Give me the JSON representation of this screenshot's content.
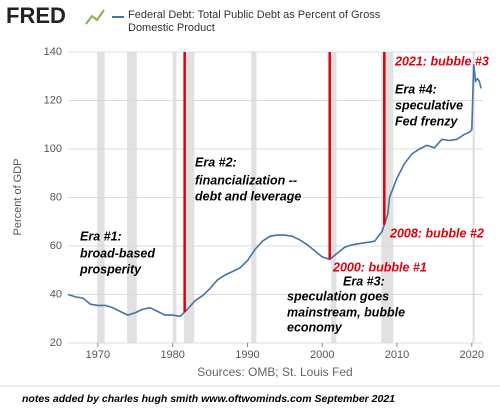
{
  "chart_data": {
    "type": "line",
    "brand": "FRED",
    "title": "Federal Debt: Total Public Debt as Percent of Gross Domestic Product",
    "ylabel": "Percent of GDP",
    "source": "Sources: OMB; St. Louis Fed",
    "footer": "notes added by charles hugh smith   www.oftwominds.com  September 2021",
    "series": [
      {
        "name": "Federal Debt: Total Public Debt as Percent of Gross Domestic Product",
        "color": "#4572a7",
        "x": [
          1966,
          1967,
          1968,
          1969,
          1970,
          1971,
          1972,
          1973,
          1974,
          1975,
          1976,
          1977,
          1978,
          1979,
          1980,
          1981,
          1982,
          1983,
          1984,
          1985,
          1986,
          1987,
          1988,
          1989,
          1990,
          1991,
          1992,
          1993,
          1994,
          1995,
          1996,
          1997,
          1998,
          1999,
          2000,
          2001,
          2002,
          2003,
          2004,
          2005,
          2006,
          2007,
          2008,
          2008.75,
          2009,
          2010,
          2011,
          2012,
          2013,
          2014,
          2015,
          2016,
          2017,
          2018,
          2019,
          2019.75,
          2020,
          2020.25,
          2020.5,
          2020.75,
          2021,
          2021.25
        ],
        "values": [
          40,
          39,
          38.5,
          36,
          35.5,
          35.5,
          34.5,
          33,
          31.5,
          32.5,
          34,
          34.5,
          33,
          31.5,
          31.5,
          31,
          34,
          37.5,
          39.5,
          42.5,
          46,
          48,
          49.5,
          51,
          54,
          58.5,
          62,
          64,
          64.5,
          64.5,
          64,
          62.5,
          60.5,
          58,
          55.5,
          54.5,
          57,
          59.5,
          60.5,
          61,
          61.5,
          62,
          66,
          73,
          80,
          88,
          94,
          98,
          100,
          101.5,
          100.5,
          104,
          103.5,
          104,
          106,
          107,
          108,
          135,
          128,
          129,
          128,
          125
        ]
      }
    ],
    "xlim": [
      1966,
      2021.5
    ],
    "xticks": [
      1970,
      1980,
      1990,
      2000,
      2010,
      2020
    ],
    "ylim": [
      20,
      140
    ],
    "yticks": [
      20,
      40,
      60,
      80,
      100,
      120,
      140
    ],
    "grid": true,
    "recessions": [
      [
        1969.9,
        1970.9
      ],
      [
        1973.9,
        1975.2
      ],
      [
        1980.0,
        1980.5
      ],
      [
        1981.5,
        1982.9
      ],
      [
        1990.5,
        1991.2
      ],
      [
        2001.2,
        2001.9
      ],
      [
        2007.9,
        2009.5
      ],
      [
        2020.1,
        2020.4
      ]
    ],
    "recession_color": "#e1e1e1",
    "markers": [
      1981.6,
      2001.0,
      2008.3
    ],
    "marker_color": "#e0000b",
    "annotations": [
      {
        "text": "2021: bubble #3",
        "color": "#e0000b"
      },
      {
        "text": "Era #4:",
        "color": "#000000"
      },
      {
        "text": "speculative",
        "color": "#000000"
      },
      {
        "text": "Fed frenzy",
        "color": "#000000"
      },
      {
        "text": "Era #2:",
        "color": "#000000"
      },
      {
        "text": "financialization --",
        "color": "#000000"
      },
      {
        "text": "debt and leverage",
        "color": "#000000"
      },
      {
        "text": "Era #1:",
        "color": "#000000"
      },
      {
        "text": "broad-based",
        "color": "#000000"
      },
      {
        "text": "prosperity",
        "color": "#000000"
      },
      {
        "text": "2008: bubble #2",
        "color": "#e0000b"
      },
      {
        "text": "2000: bubble #1",
        "color": "#e0000b"
      },
      {
        "text": "Era #3:",
        "color": "#000000"
      },
      {
        "text": "speculation goes",
        "color": "#000000"
      },
      {
        "text": "mainstream, bubble",
        "color": "#000000"
      },
      {
        "text": "economy",
        "color": "#000000"
      }
    ]
  }
}
